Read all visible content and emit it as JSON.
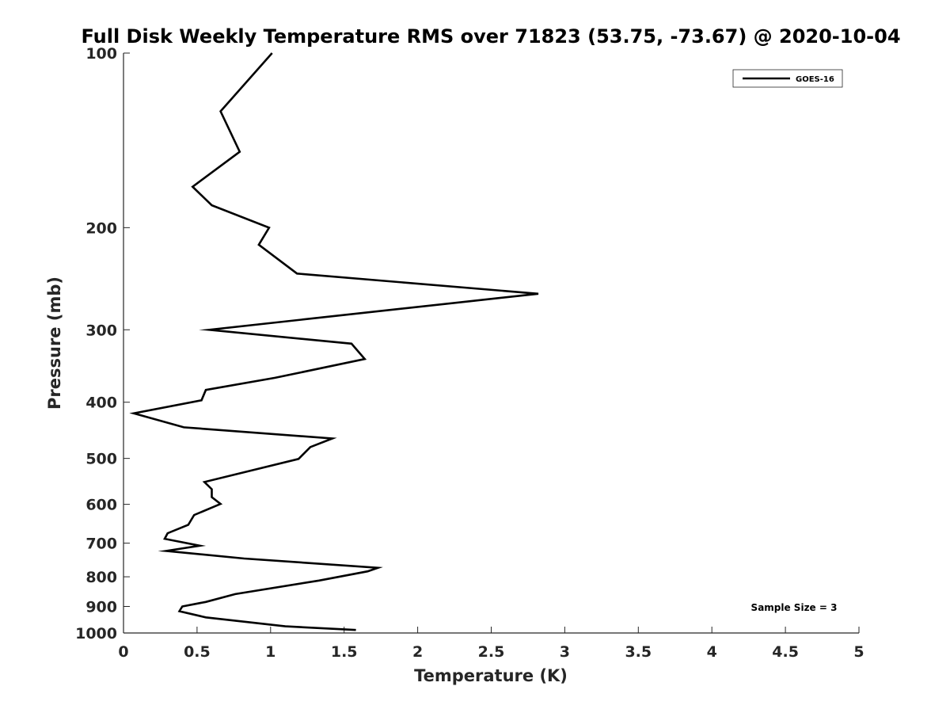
{
  "chart_data": {
    "type": "line",
    "title": "Full Disk Weekly Temperature RMS over 71823 (53.75, -73.67) @ 2020-10-04",
    "xlabel": "Temperature (K)",
    "ylabel": "Pressure (mb)",
    "xlim": [
      0,
      5
    ],
    "ylim": [
      100,
      1000
    ],
    "y_scale": "log",
    "y_reversed": true,
    "x_ticks": [
      "0",
      "0.5",
      "1",
      "1.5",
      "2",
      "2.5",
      "3",
      "3.5",
      "4",
      "4.5",
      "5"
    ],
    "y_ticks": [
      "100",
      "200",
      "300",
      "400",
      "500",
      "600",
      "700",
      "800",
      "900",
      "1000"
    ],
    "grid": false,
    "legend_position": "top-right",
    "series": [
      {
        "name": "GOES-16",
        "color": "#000000",
        "points": [
          [
            1.01,
            100
          ],
          [
            0.66,
            126
          ],
          [
            0.79,
            148
          ],
          [
            0.47,
            170
          ],
          [
            0.6,
            183
          ],
          [
            0.99,
            200
          ],
          [
            0.92,
            214
          ],
          [
            1.18,
            240
          ],
          [
            2.82,
            260
          ],
          [
            0.58,
            300
          ],
          [
            1.55,
            317
          ],
          [
            1.64,
            337
          ],
          [
            1.03,
            363
          ],
          [
            0.56,
            381
          ],
          [
            0.53,
            397
          ],
          [
            0.07,
            418
          ],
          [
            0.41,
            442
          ],
          [
            1.42,
            462
          ],
          [
            1.27,
            478
          ],
          [
            1.19,
            501
          ],
          [
            0.55,
            549
          ],
          [
            0.6,
            565
          ],
          [
            0.6,
            583
          ],
          [
            0.66,
            599
          ],
          [
            0.48,
            626
          ],
          [
            0.44,
            651
          ],
          [
            0.3,
            673
          ],
          [
            0.28,
            688
          ],
          [
            0.52,
            707
          ],
          [
            0.29,
            722
          ],
          [
            0.82,
            744
          ],
          [
            1.73,
            772
          ],
          [
            1.66,
            783
          ],
          [
            1.33,
            812
          ],
          [
            0.76,
            857
          ],
          [
            0.56,
            884
          ],
          [
            0.4,
            900
          ],
          [
            0.38,
            917
          ],
          [
            0.56,
            940
          ],
          [
            1.1,
            974
          ],
          [
            1.58,
            988
          ]
        ]
      }
    ],
    "annotations": [
      "Sample Size = 3"
    ]
  }
}
